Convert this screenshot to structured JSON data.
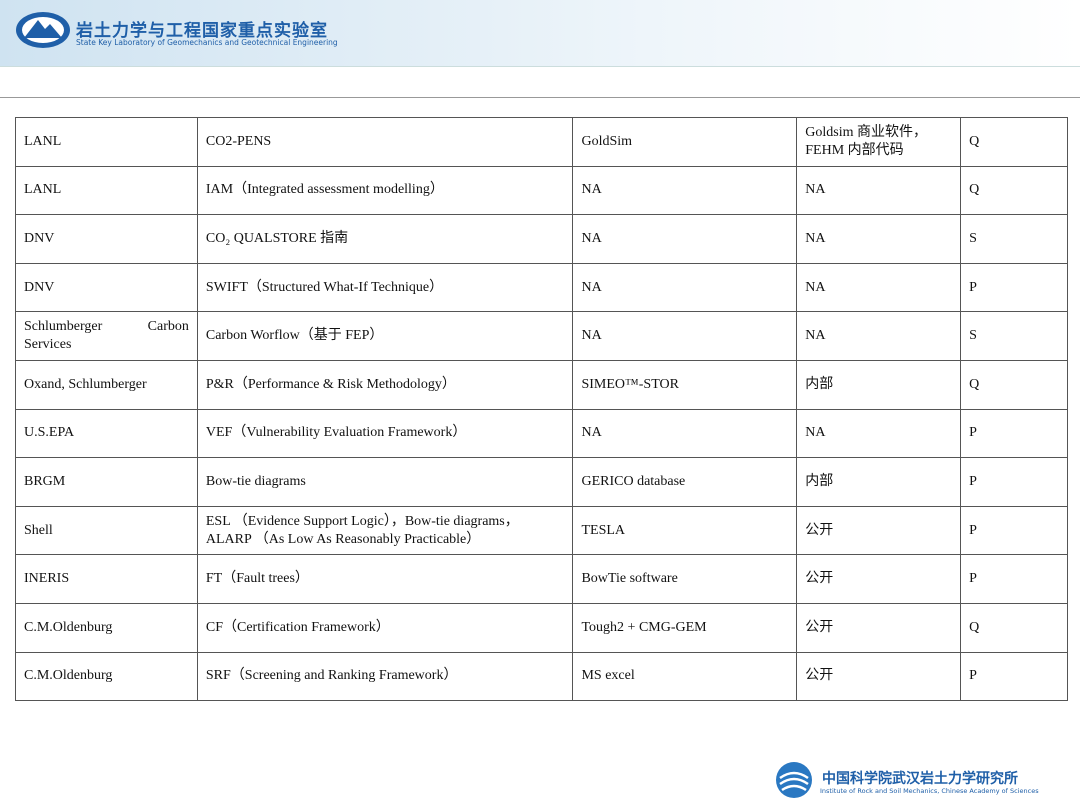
{
  "header": {
    "title": "岩土力学与工程国家重点实验室",
    "subtitle": "State Key Laboratory of Geomechanics and Geotechnical Engineering"
  },
  "table": {
    "rows": [
      [
        "LANL",
        "CO2-PENS",
        "GoldSim",
        "Goldsim 商业软件，FEHM 内部代码",
        "Q"
      ],
      [
        "LANL",
        "IAM（Integrated assessment modelling）",
        "NA",
        "NA",
        "Q"
      ],
      [
        "DNV",
        "CO₂ QUALSTORE 指南",
        "NA",
        "NA",
        "S"
      ],
      [
        "DNV",
        "SWIFT（Structured What-If Technique）",
        "NA",
        "NA",
        "P"
      ],
      [
        "Schlumberger Carbon Services",
        "Carbon Worflow（基于 FEP）",
        "NA",
        "NA",
        "S"
      ],
      [
        "Oxand, Schlumberger",
        "P&R（Performance & Risk Methodology）",
        "SIMEO™-STOR",
        "内部",
        "Q"
      ],
      [
        "U.S.EPA",
        "VEF（Vulnerability Evaluation Framework）",
        "NA",
        "NA",
        "P"
      ],
      [
        "BRGM",
        "Bow-tie diagrams",
        "GERICO database",
        "内部",
        "P"
      ],
      [
        "Shell",
        "ESL （Evidence Support Logic），Bow-tie diagrams，ALARP （As Low As Reasonably Practicable）",
        "TESLA",
        "公开",
        "P"
      ],
      [
        "INERIS",
        "FT（Fault trees）",
        "BowTie software",
        "公开",
        "P"
      ],
      [
        "C.M.Oldenburg",
        "CF（Certification Framework）",
        "Tough2 + CMG-GEM",
        "公开",
        "Q"
      ],
      [
        "C.M.Oldenburg",
        "SRF（Screening and Ranking Framework）",
        "MS excel",
        "公开",
        "P"
      ]
    ]
  },
  "footer": {
    "title": "中国科学院武汉岩土力学研究所",
    "subtitle": "Institute of Rock and Soil Mechanics, Chinese Academy of Sciences"
  }
}
